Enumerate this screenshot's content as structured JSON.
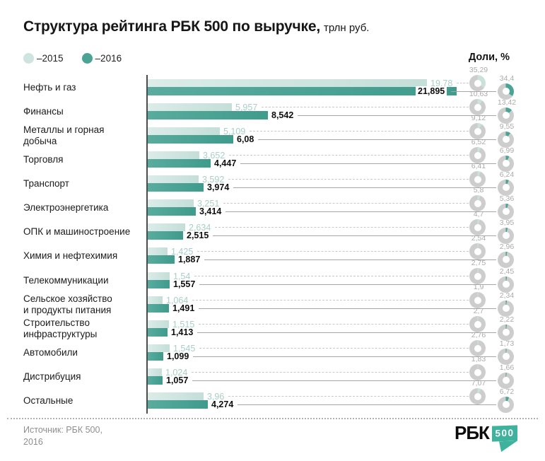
{
  "header": {
    "title": "Структура рейтинга РБК 500 по выручке,",
    "unit": "трлн руб."
  },
  "legend": {
    "items": [
      {
        "label": "–2015",
        "color": "#cee4de"
      },
      {
        "label": "–2016",
        "color": "#4ba396"
      }
    ]
  },
  "shares_header": "Доли, %",
  "colors": {
    "bar_2015": "#cee4de",
    "bar_2016": "#4ba396",
    "value_text_2015": "#a9cfc7",
    "value_text_2016": "#0e0e0e",
    "donut_track": "#cdcdcd",
    "donut_arc_2015": "#cbe2dc",
    "donut_arc_2016": "#4ba396",
    "axis": "#4c4c4c",
    "logo_teal": "#3eb29d"
  },
  "chart_data": {
    "type": "bar",
    "orientation": "horizontal",
    "title": "Структура рейтинга РБК 500 по выручке, трлн руб.",
    "legend_position": "top-left",
    "xlim": [
      0,
      22
    ],
    "grid": false,
    "categories": [
      "Нефть и газ",
      "Финансы",
      "Металлы и горная\nдобыча",
      "Торговля",
      "Транспорт",
      "Электроэнергетика",
      "ОПК и машиностроение",
      "Химия и нефтехимия",
      "Телекоммуникации",
      "Сельское хозяйство\nи продукты питания",
      "Строительство\nинфраструктуры",
      "Автомобили",
      "Дистрибуция",
      "Остальные"
    ],
    "series": [
      {
        "name": "2015",
        "values": [
          19.78,
          5.957,
          5.109,
          3.652,
          3.592,
          3.251,
          2.634,
          1.425,
          1.54,
          1.064,
          1.515,
          1.545,
          1.024,
          3.96
        ],
        "labels": [
          "19,78",
          "5,957",
          "5,109",
          "3,652",
          "3,592",
          "3,251",
          "2,634",
          "1,425",
          "1,54",
          "1,064",
          "1,515",
          "1,545",
          "1,024",
          "3,96"
        ]
      },
      {
        "name": "2016",
        "values": [
          21.895,
          8.542,
          6.08,
          4.447,
          3.974,
          3.414,
          2.515,
          1.887,
          1.557,
          1.491,
          1.413,
          1.099,
          1.057,
          4.274
        ],
        "labels": [
          "21,895",
          "8,542",
          "6,08",
          "4,447",
          "3,974",
          "3,414",
          "2,515",
          "1,887",
          "1,557",
          "1,491",
          "1,413",
          "1,099",
          "1,057",
          "4,274"
        ]
      }
    ],
    "shares_pct": [
      {
        "name": "2015",
        "values": [
          35.29,
          10.63,
          9.12,
          6.52,
          6.41,
          5.8,
          4.7,
          2.54,
          2.75,
          1.9,
          2.7,
          2.76,
          1.83,
          7.07
        ],
        "labels": [
          "35,29",
          "10,63",
          "9,12",
          "6,52",
          "6,41",
          "5,8",
          "4,7",
          "2,54",
          "2,75",
          "1,9",
          "2,7",
          "2,76",
          "1,83",
          "7,07"
        ]
      },
      {
        "name": "2016",
        "values": [
          34.4,
          13.42,
          9.55,
          6.99,
          6.24,
          5.36,
          3.95,
          2.96,
          2.45,
          2.34,
          2.22,
          1.73,
          1.66,
          6.72
        ],
        "labels": [
          "34,4",
          "13,42",
          "9,55",
          "6,99",
          "6,24",
          "5,36",
          "3,95",
          "2,96",
          "2,45",
          "2,34",
          "2,22",
          "1,73",
          "1,66",
          "6,72"
        ]
      }
    ]
  },
  "footer": {
    "source_line1": "Источник: РБК 500,",
    "source_line2": "2016",
    "logo_text": "РБК",
    "logo_badge": "500"
  }
}
